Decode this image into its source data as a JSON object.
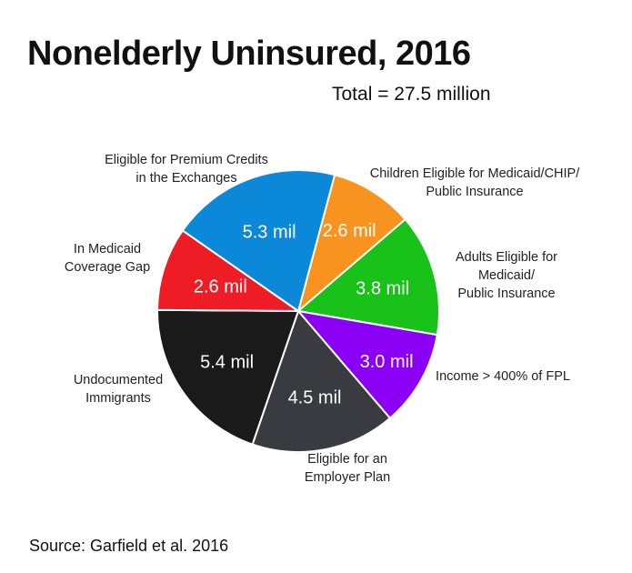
{
  "chart_data": {
    "type": "pie",
    "title": "Nonelderly Uninsured, 2016",
    "subtitle": "Total = 27.5 million",
    "source": "Source: Garfield et al. 2016",
    "slices": [
      {
        "category": [
          "Children Eligible for Medicaid/CHIP/",
          "Public Insurance"
        ],
        "value": 2.6,
        "data_label": "2.6 mil",
        "color": "#f7931e"
      },
      {
        "category": [
          "Adults Eligible for",
          "Medicaid/",
          "Public Insurance"
        ],
        "value": 3.8,
        "data_label": "3.8 mil",
        "color": "#19c219"
      },
      {
        "category": [
          "Income > 400% of FPL"
        ],
        "value": 3.0,
        "data_label": "3.0 mil",
        "color": "#8b00f5"
      },
      {
        "category": [
          "Eligible for an",
          "Employer Plan"
        ],
        "value": 4.5,
        "data_label": "4.5 mil",
        "color": "#3a3b40"
      },
      {
        "category": [
          "Undocumented",
          "Immigrants"
        ],
        "value": 5.4,
        "data_label": "5.4 mil",
        "color": "#1a1a1a"
      },
      {
        "category": [
          "In Medicaid",
          "Coverage Gap"
        ],
        "value": 2.6,
        "data_label": "2.6 mil",
        "color": "#ee1c25"
      },
      {
        "category": [
          "Eligible for Premium Credits",
          "in the Exchanges"
        ],
        "value": 5.3,
        "data_label": "5.3 mil",
        "color": "#0b88d8"
      }
    ],
    "start_angle_deg": 15,
    "direction": "clockwise"
  }
}
